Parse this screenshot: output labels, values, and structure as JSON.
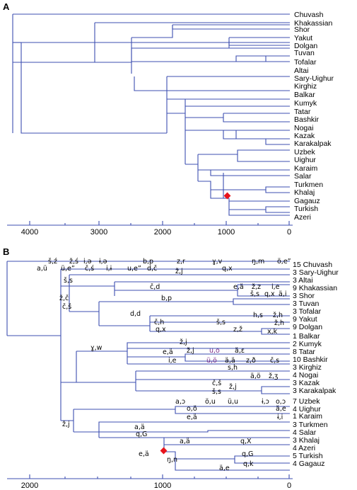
{
  "panel_a": {
    "label": "A",
    "taxa": [
      "Chuvash",
      "Khakassian",
      "Shor",
      "Yakut",
      "Dolgan",
      "Tuvan",
      "Tofalar",
      "Altai",
      "Sary-Uighur",
      "Kirghiz",
      "Balkar",
      "Kumyk",
      "Tatar",
      "Bashkir",
      "Nogai",
      "Kazak",
      "Karakalpak",
      "Uzbek",
      "Uighur",
      "Karaim",
      "Salar",
      "Turkmen",
      "Khalaj",
      "Gagauz",
      "Turkish",
      "Azeri"
    ],
    "axis_ticks": [
      "4000",
      "3000",
      "2000",
      "1000",
      "0"
    ]
  },
  "panel_b": {
    "label": "B",
    "taxa": [
      "15 Chuvash",
      "3 Sary-Uighur",
      "3 Altai",
      "9 Khakassian",
      "3 Shor",
      "3 Tuvan",
      "3 Tofalar",
      "9 Yakut",
      "9 Dolgan",
      "1 Balkar",
      "2 Kumyk",
      "8 Tatar",
      "10 Bashkir",
      "3 Kirghiz",
      "4 Nogai",
      "3 Kazak",
      "3 Karakalpak",
      "7 Uzbek",
      "4 Uighur",
      "1 Karaim",
      "3 Turkmen",
      "4 Salar",
      "3 Khalaj",
      "4 Azeri",
      "5 Turkish",
      "4 Gagauz"
    ],
    "axis_ticks": [
      "2000",
      "1000",
      "0"
    ],
    "annotations": [
      {
        "t": "š,ź",
        "k": "n"
      },
      {
        "t": "ž,ś",
        "k": "n"
      },
      {
        "t": "i,ə",
        "k": "n"
      },
      {
        "t": "ɨ,ə",
        "k": "n"
      },
      {
        "t": "b,p",
        "k": "n"
      },
      {
        "t": "z,r",
        "k": "n"
      },
      {
        "t": "ɣ,v",
        "k": "n"
      },
      {
        "t": "ŋ,m",
        "k": "n"
      },
      {
        "t": "ö,e”",
        "k": "n"
      },
      {
        "t": "a,ü",
        "k": "n"
      },
      {
        "t": "ü,e”",
        "k": "n"
      },
      {
        "t": "č,ś",
        "k": "n"
      },
      {
        "t": "i,ɨ",
        "k": "n"
      },
      {
        "t": "u,e”",
        "k": "n"
      },
      {
        "t": "d,č",
        "k": "n"
      },
      {
        "t": "ž,j",
        "k": "n"
      },
      {
        "t": "q,x",
        "k": "n"
      },
      {
        "t": "š,s",
        "k": "n"
      },
      {
        "t": "č,d",
        "k": "n"
      },
      {
        "t": "e,ä",
        "k": "n"
      },
      {
        "t": "ž,z",
        "k": "n"
      },
      {
        "t": "i,e",
        "k": "n"
      },
      {
        "t": "ž,č",
        "k": "n"
      },
      {
        "t": "š,s",
        "k": "n"
      },
      {
        "t": "q,x",
        "k": "n"
      },
      {
        "t": "ä,i",
        "k": "n"
      },
      {
        "t": "č,š",
        "k": "n"
      },
      {
        "t": "b,p",
        "k": "n"
      },
      {
        "t": "d,d",
        "k": "n"
      },
      {
        "t": "h,s",
        "k": "n"
      },
      {
        "t": "ž,h",
        "k": "n"
      },
      {
        "t": "č,h",
        "k": "n"
      },
      {
        "t": "š,s",
        "k": "n"
      },
      {
        "t": "q,x",
        "k": "n"
      },
      {
        "t": "z,ž",
        "k": "n"
      },
      {
        "t": "ž,h",
        "k": "n"
      },
      {
        "t": "x,k",
        "k": "n"
      },
      {
        "t": "ɣ,w",
        "k": "n"
      },
      {
        "t": "ž,j",
        "k": "n"
      },
      {
        "t": "e,ä",
        "k": "n"
      },
      {
        "t": "ž,j",
        "k": "n"
      },
      {
        "t": "u,o",
        "k": "p"
      },
      {
        "t": "ä,ɛ",
        "k": "n"
      },
      {
        "t": "i,e",
        "k": "n"
      },
      {
        "t": "ü,ö",
        "k": "p"
      },
      {
        "t": "ä,ä",
        "k": "n"
      },
      {
        "t": "z,ð",
        "k": "n"
      },
      {
        "t": "č,s",
        "k": "n"
      },
      {
        "t": "s,h",
        "k": "n"
      },
      {
        "t": "ä,ö",
        "k": "n"
      },
      {
        "t": "č,š",
        "k": "n"
      },
      {
        "t": "ž,ʒ",
        "k": "n"
      },
      {
        "t": "š,s",
        "k": "n"
      },
      {
        "t": "ž,j",
        "k": "n"
      },
      {
        "t": "a,ɔ",
        "k": "n"
      },
      {
        "t": "ö,u",
        "k": "n"
      },
      {
        "t": "ü,u",
        "k": "n"
      },
      {
        "t": "ɨ,ɔ",
        "k": "n"
      },
      {
        "t": "o,ɔ",
        "k": "n"
      },
      {
        "t": "o,ö",
        "k": "n"
      },
      {
        "t": "ä,e",
        "k": "n"
      },
      {
        "t": "e,ä",
        "k": "n"
      },
      {
        "t": "ɨ,i",
        "k": "n"
      },
      {
        "t": "ž,j",
        "k": "n"
      },
      {
        "t": "a,ä",
        "k": "n"
      },
      {
        "t": "q,G",
        "k": "n"
      },
      {
        "t": "a,ä",
        "k": "n"
      },
      {
        "t": "q,X",
        "k": "n"
      },
      {
        "t": "e,ä",
        "k": "n"
      },
      {
        "t": "ŋ,n",
        "k": "n"
      },
      {
        "t": "q,G",
        "k": "n"
      },
      {
        "t": "ä,e",
        "k": "n"
      },
      {
        "t": "q,k",
        "k": "n"
      }
    ]
  },
  "colors": {
    "branch": "#3d4fb0",
    "marker": "#e8141c",
    "annotation_purple": "#7a2a8a"
  }
}
